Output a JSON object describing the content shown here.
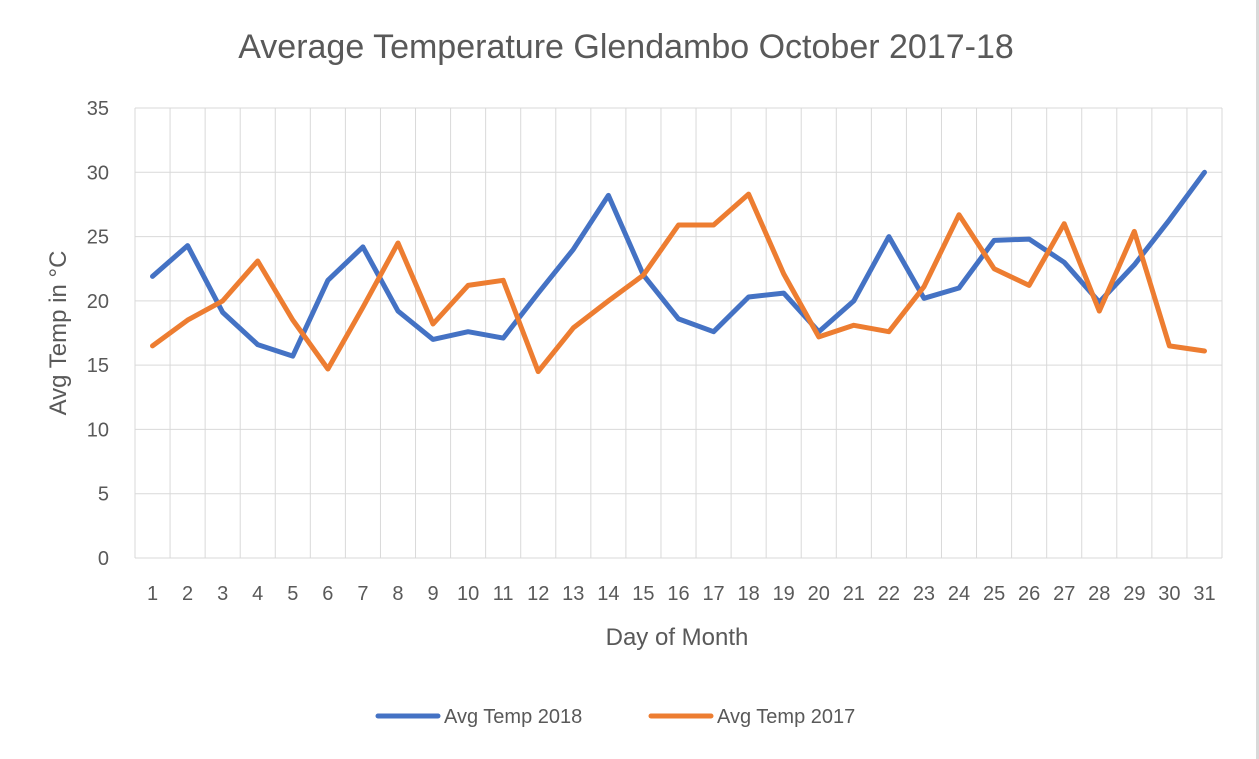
{
  "chart_data": {
    "type": "line",
    "title": "Average Temperature Glendambo October 2017-18",
    "xlabel": "Day of Month",
    "ylabel": "Avg Temp in °C",
    "ylim": [
      0,
      35
    ],
    "yticks": [
      "0",
      "5",
      "10",
      "15",
      "20",
      "25",
      "30",
      "35"
    ],
    "grid": true,
    "legend_position": "bottom",
    "categories": [
      "1",
      "2",
      "3",
      "4",
      "5",
      "6",
      "7",
      "8",
      "9",
      "10",
      "11",
      "12",
      "13",
      "14",
      "15",
      "16",
      "17",
      "18",
      "19",
      "20",
      "21",
      "22",
      "23",
      "24",
      "25",
      "26",
      "27",
      "28",
      "29",
      "30",
      "31"
    ],
    "series": [
      {
        "name": "Avg Temp 2018",
        "color": "#4472C4",
        "values": [
          21.9,
          24.3,
          19.1,
          16.6,
          15.7,
          21.6,
          24.2,
          19.2,
          17.0,
          17.6,
          17.1,
          20.6,
          24.0,
          28.2,
          22.0,
          18.6,
          17.6,
          20.3,
          20.6,
          17.6,
          20.0,
          25.0,
          20.2,
          21.0,
          24.7,
          24.8,
          23.0,
          19.9,
          22.8,
          26.3,
          30.0
        ]
      },
      {
        "name": "Avg Temp 2017",
        "color": "#ED7D31",
        "values": [
          16.5,
          18.5,
          20.0,
          23.1,
          18.5,
          14.7,
          19.5,
          24.5,
          18.2,
          21.2,
          21.6,
          14.5,
          17.9,
          20.0,
          22.0,
          25.9,
          25.9,
          28.3,
          22.1,
          17.2,
          18.1,
          17.6,
          21.1,
          26.7,
          22.5,
          21.2,
          26.0,
          19.2,
          25.4,
          16.5,
          16.1
        ]
      }
    ]
  }
}
